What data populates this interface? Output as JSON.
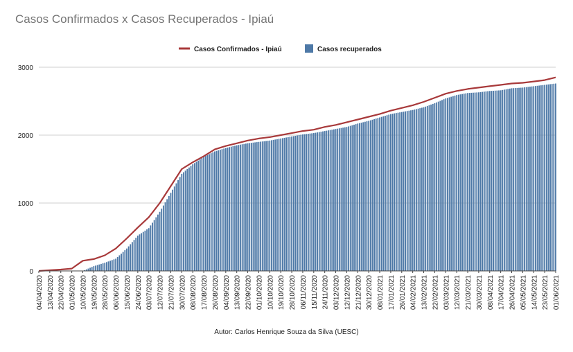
{
  "chart_data": {
    "type": "bar",
    "title": "Casos Confirmados x Casos Recuperados - Ipiaú",
    "legend_position": "top",
    "grid": true,
    "ylim": [
      0,
      3000
    ],
    "y_ticks": [
      0,
      1000,
      2000,
      3000
    ],
    "x_ticks": [
      "04/04/2020",
      "13/04/2020",
      "22/04/2020",
      "01/05/2020",
      "10/05/2020",
      "19/05/2020",
      "28/05/2020",
      "06/06/2020",
      "15/06/2020",
      "24/06/2020",
      "03/07/2020",
      "12/07/2020",
      "21/07/2020",
      "30/07/2020",
      "08/08/2020",
      "17/08/2020",
      "26/08/2020",
      "04/09/2020",
      "13/09/2020",
      "22/09/2020",
      "01/10/2020",
      "10/10/2020",
      "19/10/2020",
      "28/10/2020",
      "06/11/2020",
      "15/11/2020",
      "24/11/2020",
      "03/12/2020",
      "12/12/2020",
      "21/12/2020",
      "30/12/2020",
      "08/01/2021",
      "17/01/2021",
      "26/01/2021",
      "04/02/2021",
      "13/02/2021",
      "22/02/2021",
      "03/03/2021",
      "12/03/2021",
      "21/03/2021",
      "30/03/2021",
      "08/04/2021",
      "17/04/2021",
      "26/04/2021",
      "05/05/2021",
      "14/05/2021",
      "23/05/2021",
      "01/06/2021"
    ],
    "series": [
      {
        "name": "Casos Confirmados - Ipiaú",
        "kind": "line",
        "color": "#a8393a",
        "values": [
          0,
          10,
          20,
          35,
          150,
          175,
          230,
          330,
          480,
          640,
          790,
          1000,
          1250,
          1500,
          1600,
          1690,
          1790,
          1840,
          1880,
          1920,
          1950,
          1970,
          2000,
          2030,
          2060,
          2080,
          2120,
          2150,
          2190,
          2230,
          2270,
          2310,
          2360,
          2400,
          2440,
          2490,
          2550,
          2610,
          2650,
          2680,
          2700,
          2720,
          2740,
          2760,
          2770,
          2790,
          2810,
          2850
        ]
      },
      {
        "name": "Casos recuperados",
        "kind": "bar",
        "color": "#4e79a7",
        "values": [
          0,
          0,
          0,
          0,
          0,
          70,
          120,
          180,
          330,
          520,
          630,
          870,
          1150,
          1430,
          1570,
          1680,
          1760,
          1810,
          1850,
          1880,
          1900,
          1920,
          1950,
          1980,
          2010,
          2030,
          2060,
          2090,
          2120,
          2170,
          2210,
          2260,
          2310,
          2340,
          2370,
          2410,
          2470,
          2540,
          2590,
          2620,
          2630,
          2650,
          2660,
          2690,
          2700,
          2720,
          2740,
          2760
        ]
      }
    ]
  },
  "footer": {
    "author": "Autor: Carlos Henrique Souza da Silva  (UESC)"
  }
}
